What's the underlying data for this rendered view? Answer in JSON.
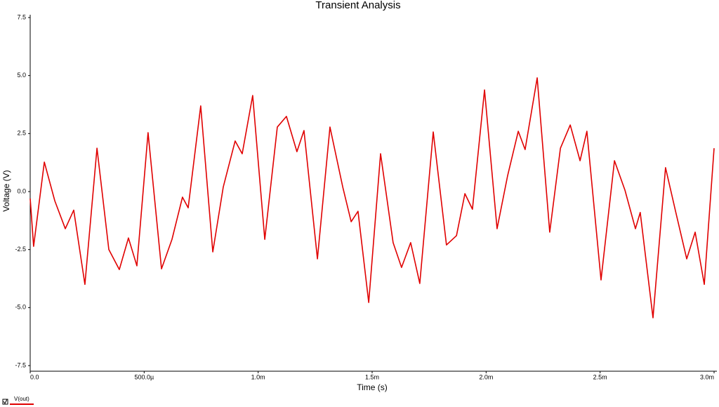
{
  "chart_data": {
    "type": "line",
    "title": "Transient Analysis",
    "x_label": "Time (s)",
    "y_label": "Voltage (V)",
    "x": [
      0,
      1.5e-05,
      6.2e-05,
      0.000108,
      0.000154,
      0.000191,
      0.00024,
      0.000293,
      0.000345,
      0.000391,
      0.000431,
      0.000468,
      0.000517,
      0.000576,
      0.000622,
      0.000668,
      0.000693,
      0.000748,
      0.000801,
      0.000847,
      0.000899,
      0.00093,
      0.000976,
      0.001029,
      0.001084,
      0.001124,
      0.00117,
      0.001201,
      0.00126,
      0.001315,
      0.001371,
      0.001408,
      0.001438,
      0.001485,
      0.001537,
      0.001592,
      0.001629,
      0.001669,
      0.001709,
      0.001768,
      0.001826,
      0.00187,
      0.001907,
      0.00194,
      0.001993,
      0.002048,
      0.002094,
      0.002141,
      0.002171,
      0.002224,
      0.002279,
      0.002326,
      0.002369,
      0.002412,
      0.002442,
      0.002504,
      0.002563,
      0.002609,
      0.002655,
      0.002676,
      0.002732,
      0.002787,
      0.002831,
      0.00288,
      0.002917,
      0.002957,
      0.003
    ],
    "series": [
      {
        "name": "V(out)",
        "color": "#e00000",
        "values": [
          -0.3,
          -2.36,
          1.27,
          -0.4,
          -1.6,
          -0.8,
          -4.0,
          1.87,
          -2.5,
          -3.36,
          -2.0,
          -3.2,
          2.54,
          -3.33,
          -2.06,
          -0.24,
          -0.7,
          3.69,
          -2.6,
          0.2,
          2.18,
          1.63,
          4.14,
          -2.06,
          2.78,
          3.24,
          1.72,
          2.63,
          -2.9,
          2.78,
          0.2,
          -1.3,
          -0.85,
          -4.78,
          1.63,
          -2.2,
          -3.27,
          -2.2,
          -3.96,
          2.57,
          -2.3,
          -1.9,
          -0.09,
          -0.76,
          4.38,
          -1.6,
          0.67,
          2.6,
          1.81,
          4.9,
          -1.75,
          1.87,
          2.87,
          1.33,
          2.6,
          -3.81,
          1.33,
          0.06,
          -1.6,
          -0.9,
          -5.44,
          1.03,
          -0.85,
          -2.9,
          -1.75,
          -4.0,
          1.87
        ]
      }
    ],
    "xlim": [
      0,
      0.003
    ],
    "xticks": [
      {
        "value": 0,
        "label": "0.0"
      },
      {
        "value": 0.0005,
        "label": "500.0µ"
      },
      {
        "value": 0.001,
        "label": "1.0m"
      },
      {
        "value": 0.0015,
        "label": "1.5m"
      },
      {
        "value": 0.002,
        "label": "2.0m"
      },
      {
        "value": 0.0025,
        "label": "2.5m"
      },
      {
        "value": 0.003,
        "label": "3.0m"
      }
    ],
    "ylim": [
      -7.5,
      7.5
    ],
    "yticks": [
      7.5,
      {
        "value": 5,
        "label": "5.0"
      },
      2.5,
      {
        "value": 0,
        "label": "0.0"
      },
      -2.5,
      {
        "value": -5,
        "label": "-5.0"
      },
      -7.5
    ],
    "grid": false
  }
}
